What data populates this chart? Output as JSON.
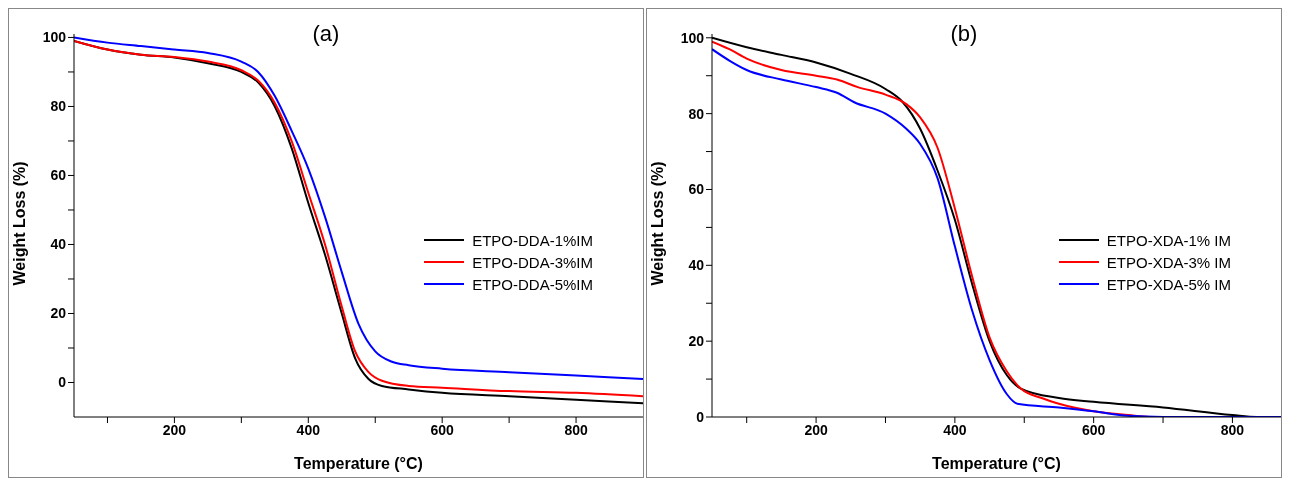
{
  "chart_data": [
    {
      "type": "line",
      "title": "(a)",
      "xlabel": "Temperature (°C)",
      "ylabel": "Weight Loss (%)",
      "xlim": [
        50,
        900
      ],
      "ylim": [
        -10,
        101
      ],
      "xticks": [
        {
          "value": 100,
          "label": null
        },
        200,
        {
          "value": 300,
          "label": null
        },
        400,
        {
          "value": 500,
          "label": null
        },
        600,
        {
          "value": 700,
          "label": null
        },
        800
      ],
      "yticks": [
        0,
        {
          "value": 10,
          "label": null
        },
        20,
        {
          "value": 30,
          "label": null
        },
        40,
        {
          "value": 50,
          "label": null
        },
        60,
        {
          "value": 70,
          "label": null
        },
        80,
        {
          "value": 90,
          "label": null
        },
        100
      ],
      "legend": "right",
      "grid": false,
      "line_style": "solid",
      "marker": "none",
      "series": [
        {
          "name": "ETPO-DDA-1%IM",
          "color": "#000000",
          "x": [
            50,
            100,
            150,
            200,
            250,
            300,
            325,
            350,
            375,
            400,
            425,
            450,
            470,
            490,
            510,
            550,
            600,
            700,
            800,
            900
          ],
          "values": [
            99,
            96.5,
            95,
            94.2,
            92.5,
            90,
            87,
            80,
            68,
            52,
            37,
            20,
            7,
            1,
            -1,
            -2,
            -3,
            -4,
            -5,
            -6
          ]
        },
        {
          "name": "ETPO-DDA-3%IM",
          "color": "#ff0000",
          "x": [
            50,
            100,
            150,
            200,
            250,
            300,
            325,
            350,
            375,
            400,
            425,
            450,
            470,
            490,
            510,
            550,
            600,
            700,
            800,
            900
          ],
          "values": [
            99,
            96.5,
            95,
            94.3,
            93,
            90.5,
            87.5,
            81,
            70,
            55,
            40,
            22,
            9,
            3,
            0.5,
            -1,
            -1.5,
            -2.5,
            -3,
            -4
          ]
        },
        {
          "name": "ETPO-DDA-5%IM",
          "color": "#0000ff",
          "x": [
            50,
            100,
            150,
            200,
            250,
            300,
            325,
            350,
            375,
            400,
            425,
            450,
            475,
            500,
            525,
            550,
            600,
            700,
            800,
            900
          ],
          "values": [
            100,
            98.5,
            97.5,
            96.5,
            95.5,
            93,
            90,
            83,
            73,
            62,
            48,
            32,
            17,
            9,
            6,
            5,
            4,
            3,
            2,
            1
          ]
        }
      ]
    },
    {
      "type": "line",
      "title": "(b)",
      "xlabel": "Temperature (°C)",
      "ylabel": "Weight Loss (%)",
      "xlim": [
        50,
        870
      ],
      "ylim": [
        0,
        101
      ],
      "xticks": [
        {
          "value": 100,
          "label": null
        },
        200,
        {
          "value": 300,
          "label": null
        },
        400,
        {
          "value": 500,
          "label": null
        },
        600,
        {
          "value": 700,
          "label": null
        },
        800
      ],
      "yticks": [
        0,
        {
          "value": 10,
          "label": null
        },
        20,
        {
          "value": 30,
          "label": null
        },
        40,
        {
          "value": 50,
          "label": null
        },
        60,
        {
          "value": 70,
          "label": null
        },
        80,
        {
          "value": 90,
          "label": null
        },
        100
      ],
      "legend": "right",
      "grid": false,
      "line_style": "solid",
      "marker": "none",
      "series": [
        {
          "name": "ETPO-XDA-1% IM",
          "color": "#000000",
          "x": [
            50,
            100,
            150,
            200,
            250,
            300,
            325,
            350,
            375,
            400,
            425,
            450,
            475,
            495,
            550,
            600,
            700,
            800,
            835,
            870
          ],
          "values": [
            100,
            97.5,
            95.5,
            93.5,
            90.5,
            86.5,
            83,
            76,
            65,
            52,
            35,
            20,
            11,
            7.5,
            5,
            4,
            2.5,
            0.5,
            0,
            0
          ]
        },
        {
          "name": "ETPO-XDA-3% IM",
          "color": "#ff0000",
          "x": [
            50,
            75,
            100,
            150,
            200,
            230,
            260,
            300,
            330,
            350,
            375,
            400,
            425,
            450,
            475,
            495,
            525,
            550,
            600,
            650,
            680,
            870
          ],
          "values": [
            99,
            97,
            94.5,
            91.5,
            90,
            89,
            87,
            85,
            82.5,
            79,
            71,
            55,
            37,
            21,
            12,
            7.5,
            5,
            3.5,
            1.5,
            0.5,
            0,
            0
          ]
        },
        {
          "name": "ETPO-XDA-5% IM",
          "color": "#0000ff",
          "x": [
            50,
            75,
            100,
            150,
            200,
            230,
            255,
            300,
            330,
            350,
            375,
            400,
            425,
            450,
            475,
            490,
            550,
            600,
            650,
            700,
            870
          ],
          "values": [
            97,
            94,
            91.5,
            89,
            87,
            85.5,
            83,
            80,
            76,
            72,
            63,
            45,
            28,
            15,
            6,
            3.5,
            2.5,
            1.5,
            0.3,
            0,
            0
          ]
        }
      ]
    }
  ]
}
